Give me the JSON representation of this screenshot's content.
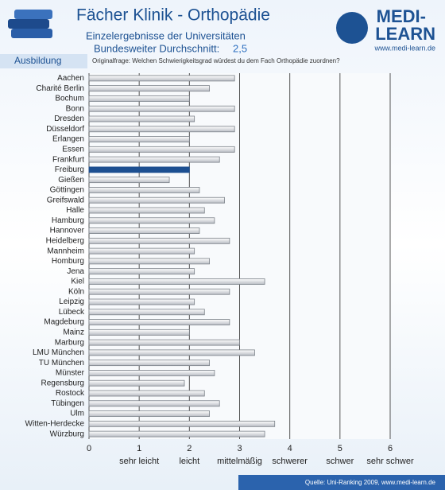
{
  "header": {
    "title": "Fächer Klinik - Orthopädie",
    "subtitle": "Einzelergebnisse der Universitäten",
    "average_label": "Bundesweiter Durchschnitt:",
    "average": "2,5",
    "logo_line1": "MEDI-",
    "logo_line2": "LEARN",
    "logo_url": "www.medi-learn.de",
    "section": "Ausbildung",
    "question": "Originalfrage: Welchen Schwierigkeitsgrad würdest du dem Fach Orthopädie zuordnen?",
    "source": "Quelle: Uni-Ranking 2009, www.medi-learn.de"
  },
  "chart_data": {
    "type": "hbar",
    "categories": [
      "Aachen",
      "Charité Berlin",
      "Bochum",
      "Bonn",
      "Dresden",
      "Düsseldorf",
      "Erlangen",
      "Essen",
      "Frankfurt",
      "Freiburg",
      "Gießen",
      "Göttingen",
      "Greifswald",
      "Halle",
      "Hamburg",
      "Hannover",
      "Heidelberg",
      "Mannheim",
      "Homburg",
      "Jena",
      "Kiel",
      "Köln",
      "Leipzig",
      "Lübeck",
      "Magdeburg",
      "Mainz",
      "Marburg",
      "LMU München",
      "TU München",
      "Münster",
      "Regensburg",
      "Rostock",
      "Tübingen",
      "Ulm",
      "Witten-Herdecke",
      "Würzburg"
    ],
    "values": [
      2.9,
      2.4,
      2.0,
      2.9,
      2.1,
      2.9,
      2.0,
      2.9,
      2.6,
      2.0,
      1.6,
      2.2,
      2.7,
      2.3,
      2.5,
      2.2,
      2.8,
      2.1,
      2.4,
      2.1,
      3.5,
      2.8,
      2.1,
      2.3,
      2.8,
      2.0,
      3.0,
      3.3,
      2.4,
      2.5,
      1.9,
      2.3,
      2.6,
      2.4,
      3.7,
      3.5
    ],
    "color": "#e4e6ea",
    "highlight": "Freiburg",
    "highlight_color": "#1c4f91",
    "xlim": [
      0,
      6
    ],
    "xticks": [
      0,
      1,
      2,
      3,
      4,
      5,
      6
    ],
    "grid": true,
    "scale_labels": [
      {
        "value": 1,
        "label": "sehr leicht"
      },
      {
        "value": 2,
        "label": "leicht"
      },
      {
        "value": 3,
        "label": "mittelmäßig"
      },
      {
        "value": 4,
        "label": "schwerer"
      },
      {
        "value": 5,
        "label": "schwer"
      },
      {
        "value": 6,
        "label": "sehr schwer"
      }
    ]
  }
}
